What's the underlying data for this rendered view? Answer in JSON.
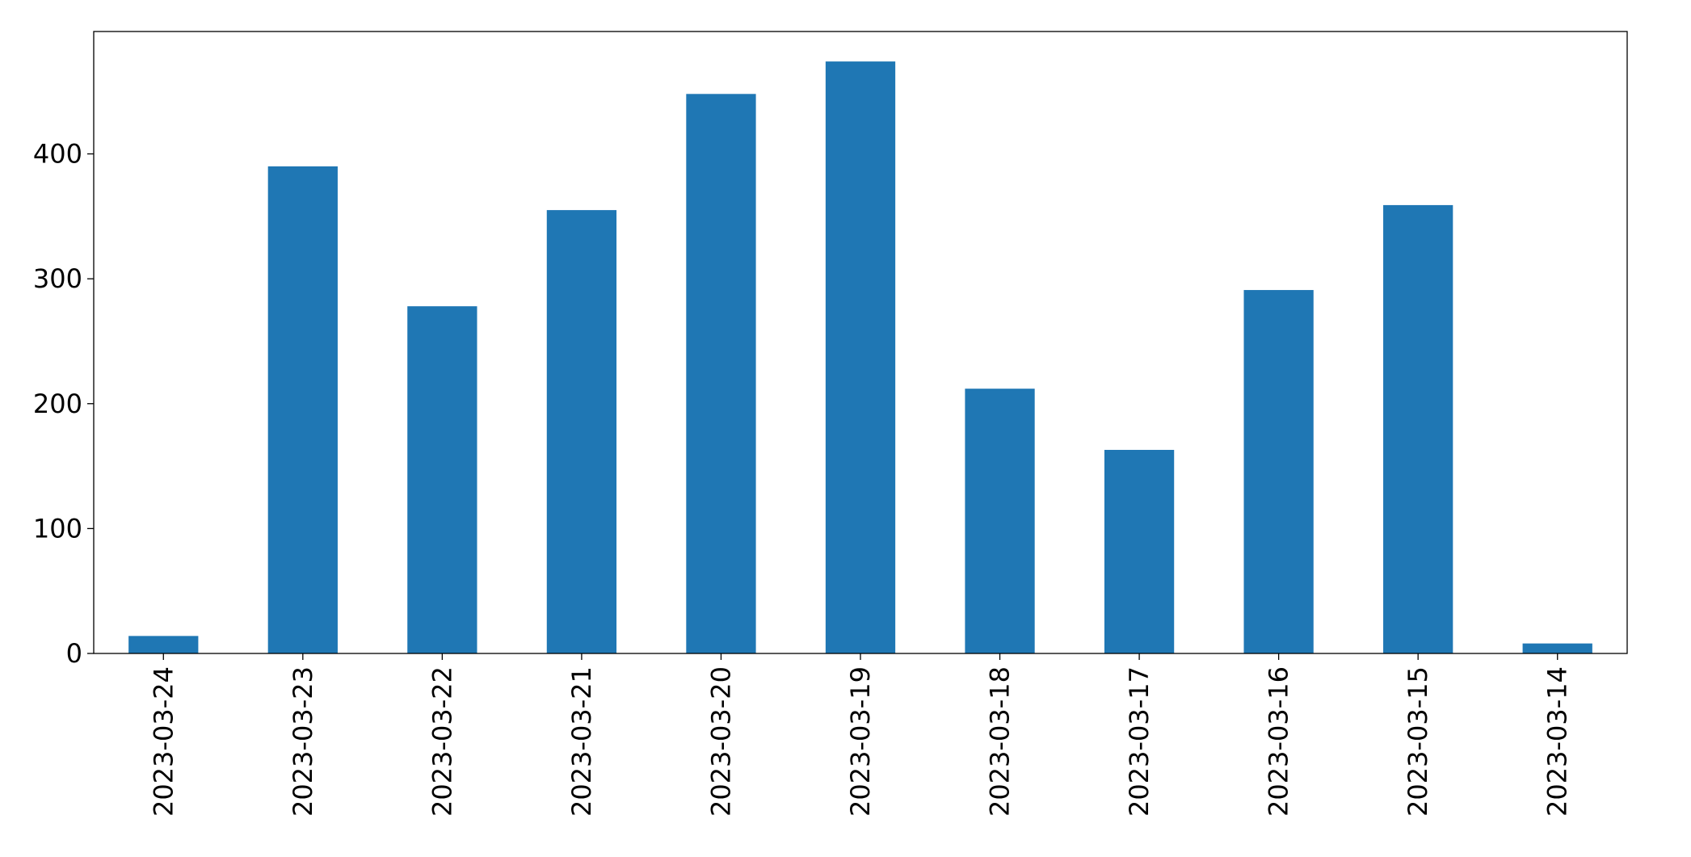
{
  "chart_data": {
    "type": "bar",
    "categories": [
      "2023-03-24",
      "2023-03-23",
      "2023-03-22",
      "2023-03-21",
      "2023-03-20",
      "2023-03-19",
      "2023-03-18",
      "2023-03-17",
      "2023-03-16",
      "2023-03-15",
      "2023-03-14"
    ],
    "values": [
      14,
      390,
      278,
      355,
      448,
      474,
      212,
      163,
      291,
      359,
      8
    ],
    "color": "#1f77b4",
    "ylim": [
      0,
      498
    ],
    "yticks": [
      0,
      100,
      200,
      300,
      400
    ],
    "grid": false
  }
}
